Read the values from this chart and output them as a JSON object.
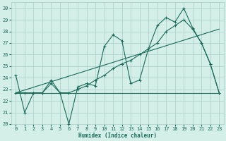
{
  "xlabel": "Humidex (Indice chaleur)",
  "xlim": [
    -0.5,
    23.5
  ],
  "ylim": [
    20,
    30.5
  ],
  "yticks": [
    20,
    21,
    22,
    23,
    24,
    25,
    26,
    27,
    28,
    29,
    30
  ],
  "xticks": [
    0,
    1,
    2,
    3,
    4,
    5,
    6,
    7,
    8,
    9,
    10,
    11,
    12,
    13,
    14,
    15,
    16,
    17,
    18,
    19,
    20,
    21,
    22,
    23
  ],
  "bg_color": "#d4eee8",
  "grid_color": "#aacec8",
  "line_color": "#1a6b5a",
  "line1": [
    24.2,
    21.0,
    22.7,
    22.7,
    23.8,
    22.7,
    20.0,
    23.2,
    23.5,
    23.3,
    26.7,
    27.7,
    27.2,
    23.5,
    23.8,
    26.5,
    28.5,
    29.2,
    28.8,
    30.0,
    28.3,
    27.0,
    25.2,
    22.7
  ],
  "line2": [
    22.7,
    22.7,
    22.7,
    22.7,
    23.5,
    22.7,
    22.7,
    23.0,
    23.3,
    23.8,
    24.2,
    24.8,
    25.2,
    25.5,
    26.0,
    26.5,
    27.0,
    28.0,
    28.5,
    29.0,
    28.2,
    27.0,
    25.2,
    22.7
  ],
  "flat_y": 22.7,
  "trend_x0": 0,
  "trend_x1": 23,
  "trend_y0": 22.7,
  "trend_y1": 28.2
}
